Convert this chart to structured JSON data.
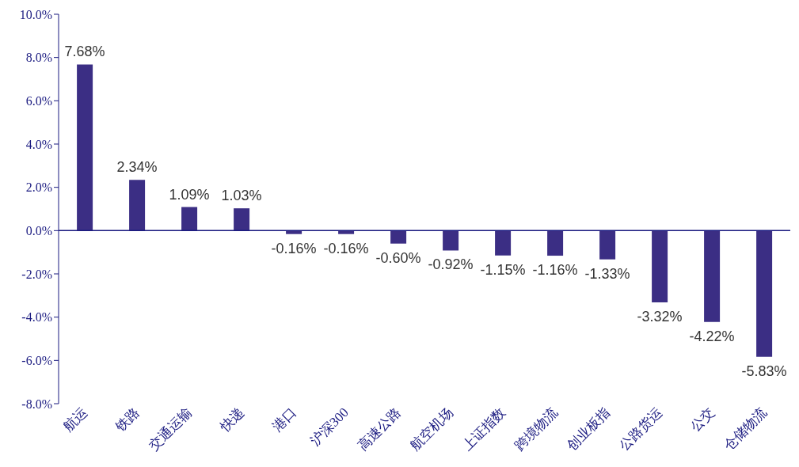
{
  "chart_data": {
    "type": "bar",
    "categories": [
      "航运",
      "铁路",
      "交通运输",
      "快递",
      "港口",
      "沪深300",
      "高速公路",
      "航空机场",
      "上证指数",
      "跨境物流",
      "创业板指",
      "公路货运",
      "公交",
      "仓储物流"
    ],
    "values": [
      7.68,
      2.34,
      1.09,
      1.03,
      -0.16,
      -0.16,
      -0.6,
      -0.92,
      -1.15,
      -1.16,
      -1.33,
      -3.32,
      -4.22,
      -5.83
    ],
    "value_labels": [
      "7.68%",
      "2.34%",
      "1.09%",
      "1.03%",
      "-0.16%",
      "-0.16%",
      "-0.60%",
      "-0.92%",
      "-1.15%",
      "-1.16%",
      "-1.33%",
      "-3.32%",
      "-4.22%",
      "-5.83%"
    ],
    "color": "#3b2e84",
    "ylim": [
      -8,
      10
    ],
    "yticks": [
      {
        "value": -8,
        "label": "-8.0%"
      },
      {
        "value": -6,
        "label": "-6.0%"
      },
      {
        "value": -4,
        "label": "-4.0%"
      },
      {
        "value": -2,
        "label": "-2.0%"
      },
      {
        "value": 0,
        "label": "0.0%"
      },
      {
        "value": 2,
        "label": "2.0%"
      },
      {
        "value": 4,
        "label": "4.0%"
      },
      {
        "value": 6,
        "label": "6.0%"
      },
      {
        "value": 8,
        "label": "8.0%"
      },
      {
        "value": 10,
        "label": "10.0%"
      }
    ],
    "ref_lines": [
      {
        "axis": "y",
        "value": 0,
        "color": "#1a1a80"
      }
    ],
    "grid": false,
    "legend": false
  }
}
